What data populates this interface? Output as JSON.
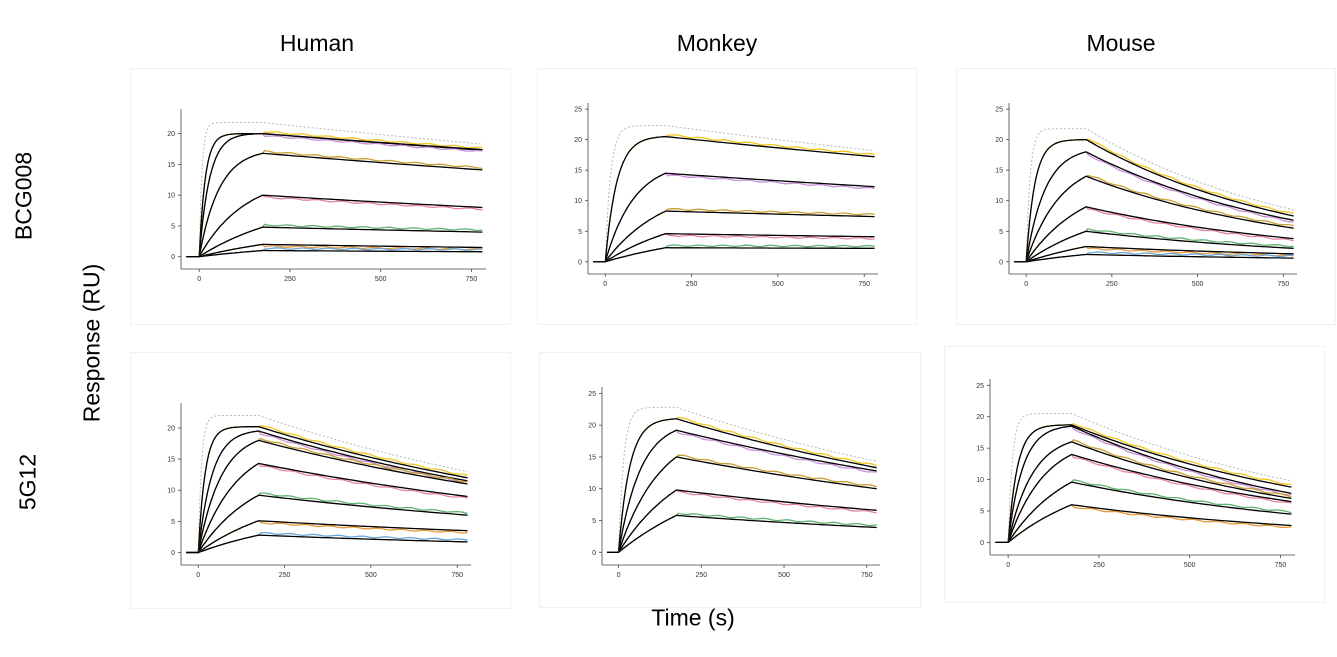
{
  "labels": {
    "columns": [
      "Human",
      "Monkey",
      "Mouse"
    ],
    "rows": [
      "BCG008",
      "5G12"
    ],
    "y_axis": "Response (RU)",
    "x_axis": "Time (s)"
  },
  "colors": {
    "fit": "#000000",
    "reference": "#b8b8b8",
    "series": [
      "#f2c521",
      "#c98fd6",
      "#c8a032",
      "#e8849c",
      "#5fb56f",
      "#e89a3a",
      "#6aa6d8"
    ]
  },
  "chart_data": [
    {
      "type": "line",
      "row": "BCG008",
      "column": "Human",
      "xticks": [
        0,
        250,
        500,
        750
      ],
      "yticks": [
        0,
        5,
        10,
        15,
        20
      ],
      "xlim": [
        -50,
        790
      ],
      "ylim": [
        -2,
        24
      ],
      "association_end_s": 175,
      "dissociation_end_s": 780,
      "series": [
        {
          "peak": 20.0,
          "end": 17.3,
          "k_on": 0.06,
          "reference": true
        },
        {
          "peak": 20.0,
          "end": 17.4,
          "k_on": 0.035
        },
        {
          "peak": 16.8,
          "end": 14.1,
          "k_on": 0.018
        },
        {
          "peak": 10.0,
          "end": 8.0,
          "k_on": 0.008
        },
        {
          "peak": 4.8,
          "end": 4.0,
          "k_on": 0.004
        },
        {
          "peak": 2.0,
          "end": 1.5,
          "k_on": 0.003
        },
        {
          "peak": 1.0,
          "end": 0.8,
          "k_on": 0.003
        }
      ]
    },
    {
      "type": "line",
      "row": "BCG008",
      "column": "Monkey",
      "xticks": [
        0,
        250,
        500,
        750
      ],
      "yticks": [
        0,
        5,
        10,
        15,
        20,
        25
      ],
      "xlim": [
        -50,
        790
      ],
      "ylim": [
        -2,
        26
      ],
      "association_end_s": 175,
      "dissociation_end_s": 780,
      "series": [
        {
          "peak": 20.5,
          "end": 17.2,
          "k_on": 0.03
        },
        {
          "peak": 14.5,
          "end": 12.3,
          "k_on": 0.012
        },
        {
          "peak": 8.3,
          "end": 7.4,
          "k_on": 0.006
        },
        {
          "peak": 4.6,
          "end": 4.1,
          "k_on": 0.004
        },
        {
          "peak": 2.3,
          "end": 2.2,
          "k_on": 0.003
        }
      ]
    },
    {
      "type": "line",
      "row": "BCG008",
      "column": "Mouse",
      "xticks": [
        0,
        250,
        500,
        750
      ],
      "yticks": [
        0,
        5,
        10,
        15,
        20,
        25
      ],
      "xlim": [
        -50,
        790
      ],
      "ylim": [
        -2,
        26
      ],
      "association_end_s": 175,
      "dissociation_end_s": 780,
      "series": [
        {
          "peak": 20.0,
          "end": 7.5,
          "k_on": 0.04
        },
        {
          "peak": 18.0,
          "end": 6.8,
          "k_on": 0.018
        },
        {
          "peak": 14.0,
          "end": 5.5,
          "k_on": 0.01
        },
        {
          "peak": 9.0,
          "end": 3.8,
          "k_on": 0.006
        },
        {
          "peak": 5.0,
          "end": 2.2,
          "k_on": 0.004
        },
        {
          "peak": 2.5,
          "end": 1.3,
          "k_on": 0.003
        },
        {
          "peak": 1.2,
          "end": 0.6,
          "k_on": 0.003
        }
      ]
    },
    {
      "type": "line",
      "row": "5G12",
      "column": "Human",
      "xticks": [
        0,
        250,
        500,
        750
      ],
      "yticks": [
        0,
        5,
        10,
        15,
        20
      ],
      "xlim": [
        -50,
        790
      ],
      "ylim": [
        -2,
        24
      ],
      "association_end_s": 175,
      "dissociation_end_s": 780,
      "series": [
        {
          "peak": 20.2,
          "end": 12.0,
          "k_on": 0.05
        },
        {
          "peak": 19.5,
          "end": 11.5,
          "k_on": 0.025
        },
        {
          "peak": 18.0,
          "end": 11.0,
          "k_on": 0.015
        },
        {
          "peak": 14.3,
          "end": 9.0,
          "k_on": 0.009
        },
        {
          "peak": 9.2,
          "end": 6.0,
          "k_on": 0.006
        },
        {
          "peak": 5.1,
          "end": 3.5,
          "k_on": 0.004
        },
        {
          "peak": 2.8,
          "end": 1.7,
          "k_on": 0.003
        }
      ]
    },
    {
      "type": "line",
      "row": "5G12",
      "column": "Monkey",
      "xticks": [
        0,
        250,
        500,
        750
      ],
      "yticks": [
        0,
        5,
        10,
        15,
        20,
        25
      ],
      "xlim": [
        -50,
        790
      ],
      "ylim": [
        -2,
        26
      ],
      "association_end_s": 175,
      "dissociation_end_s": 780,
      "series": [
        {
          "peak": 21.0,
          "end": 13.3,
          "k_on": 0.03
        },
        {
          "peak": 19.2,
          "end": 12.8,
          "k_on": 0.015
        },
        {
          "peak": 15.0,
          "end": 10.0,
          "k_on": 0.008
        },
        {
          "peak": 9.8,
          "end": 6.6,
          "k_on": 0.005
        },
        {
          "peak": 5.8,
          "end": 3.9,
          "k_on": 0.003
        }
      ]
    },
    {
      "type": "line",
      "row": "5G12",
      "column": "Mouse",
      "xticks": [
        0,
        250,
        500,
        750
      ],
      "yticks": [
        0,
        5,
        10,
        15,
        20,
        25
      ],
      "xlim": [
        -50,
        790
      ],
      "ylim": [
        -2,
        26
      ],
      "association_end_s": 175,
      "dissociation_end_s": 780,
      "series": [
        {
          "peak": 18.7,
          "end": 8.8,
          "k_on": 0.04
        },
        {
          "peak": 18.5,
          "end": 7.8,
          "k_on": 0.025
        },
        {
          "peak": 16.0,
          "end": 7.0,
          "k_on": 0.015
        },
        {
          "peak": 14.0,
          "end": 6.5,
          "k_on": 0.01
        },
        {
          "peak": 9.6,
          "end": 4.5,
          "k_on": 0.006
        },
        {
          "peak": 6.0,
          "end": 2.7,
          "k_on": 0.004
        }
      ]
    }
  ]
}
